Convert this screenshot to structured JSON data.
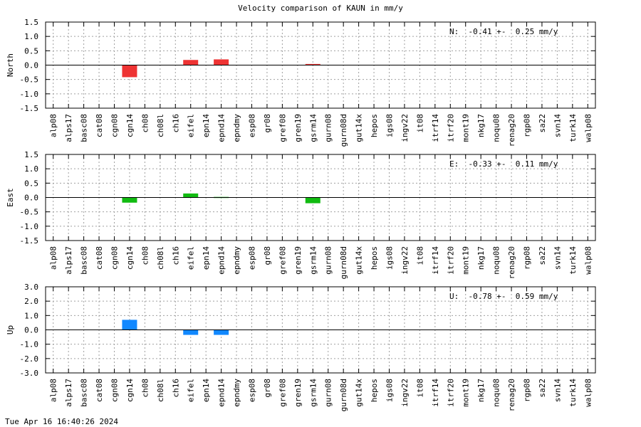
{
  "title": "Velocity comparison of KAUN in mm/y",
  "timestamp": "Tue Apr 16 16:40:26 2024",
  "chart_data": [
    {
      "type": "bar",
      "ylabel": "North",
      "stat": "N:  -0.41 +-  0.25 mm/y",
      "color": "#ee3333",
      "ylim": [
        -1.5,
        1.5
      ],
      "yticks": [
        1.5,
        1.0,
        0.5,
        0.0,
        -0.5,
        -1.0,
        -1.5
      ],
      "ytick_labels": [
        "1.5",
        "1.0",
        "0.5",
        "0.0",
        "-0.5",
        "-1.0",
        "-1.5"
      ],
      "grid": true,
      "categories": [
        "alp08",
        "alps17",
        "basc08",
        "cat08",
        "cgn08",
        "cgn14",
        "ch08",
        "ch08l",
        "ch16",
        "eifel",
        "epn14",
        "epnd14",
        "epndmy",
        "esp08",
        "gr08",
        "gref08",
        "gren19",
        "gsrm14",
        "gurn08",
        "gurn08d",
        "gut14x",
        "hepos",
        "igs08",
        "ingv22",
        "it08",
        "itrf14",
        "itrf20",
        "mont19",
        "nkg17",
        "noqu08",
        "renag20",
        "rgp08",
        "sa22",
        "svn14",
        "turk14",
        "walp08"
      ],
      "values": [
        null,
        null,
        null,
        null,
        null,
        -0.42,
        null,
        null,
        null,
        0.18,
        null,
        0.2,
        null,
        null,
        null,
        null,
        null,
        0.04,
        null,
        null,
        null,
        null,
        null,
        null,
        null,
        null,
        null,
        null,
        null,
        null,
        null,
        null,
        null,
        null,
        null,
        null
      ]
    },
    {
      "type": "bar",
      "ylabel": "East",
      "stat": "E:  -0.33 +-  0.11 mm/y",
      "color": "#11bb11",
      "ylim": [
        -1.5,
        1.5
      ],
      "yticks": [
        1.5,
        1.0,
        0.5,
        0.0,
        -0.5,
        -1.0,
        -1.5
      ],
      "ytick_labels": [
        "1.5",
        "1.0",
        "0.5",
        "0.0",
        "-0.5",
        "-1.0",
        "-1.5"
      ],
      "grid": true,
      "categories": [
        "alp08",
        "alps17",
        "basc08",
        "cat08",
        "cgn08",
        "cgn14",
        "ch08",
        "ch08l",
        "ch16",
        "eifel",
        "epn14",
        "epnd14",
        "epndmy",
        "esp08",
        "gr08",
        "gref08",
        "gren19",
        "gsrm14",
        "gurn08",
        "gurn08d",
        "gut14x",
        "hepos",
        "igs08",
        "ingv22",
        "it08",
        "itrf14",
        "itrf20",
        "mont19",
        "nkg17",
        "noqu08",
        "renag20",
        "rgp08",
        "sa22",
        "svn14",
        "turk14",
        "walp08"
      ],
      "values": [
        null,
        null,
        null,
        null,
        null,
        -0.18,
        null,
        null,
        null,
        0.14,
        null,
        0.02,
        null,
        null,
        null,
        null,
        null,
        -0.2,
        null,
        null,
        null,
        null,
        null,
        null,
        null,
        null,
        null,
        null,
        null,
        null,
        null,
        null,
        null,
        null,
        null,
        null
      ]
    },
    {
      "type": "bar",
      "ylabel": "Up",
      "stat": "U:  -0.78 +-  0.59 mm/y",
      "color": "#1188ff",
      "ylim": [
        -3.0,
        3.0
      ],
      "yticks": [
        3.0,
        2.0,
        1.0,
        0.0,
        -1.0,
        -2.0,
        -3.0
      ],
      "ytick_labels": [
        "3.0",
        "2.0",
        "1.0",
        "0.0",
        "-1.0",
        "-2.0",
        "-3.0"
      ],
      "grid": true,
      "categories": [
        "alp08",
        "alps17",
        "basc08",
        "cat08",
        "cgn08",
        "cgn14",
        "ch08",
        "ch08l",
        "ch16",
        "eifel",
        "epn14",
        "epnd14",
        "epndmy",
        "esp08",
        "gr08",
        "gref08",
        "gren19",
        "gsrm14",
        "gurn08",
        "gurn08d",
        "gut14x",
        "hepos",
        "igs08",
        "ingv22",
        "it08",
        "itrf14",
        "itrf20",
        "mont19",
        "nkg17",
        "noqu08",
        "renag20",
        "rgp08",
        "sa22",
        "svn14",
        "turk14",
        "walp08"
      ],
      "values": [
        null,
        null,
        null,
        null,
        null,
        0.7,
        null,
        null,
        null,
        -0.35,
        null,
        -0.35,
        null,
        null,
        null,
        null,
        null,
        null,
        null,
        null,
        null,
        null,
        null,
        null,
        null,
        null,
        null,
        null,
        null,
        null,
        null,
        null,
        null,
        null,
        null,
        null
      ]
    }
  ]
}
